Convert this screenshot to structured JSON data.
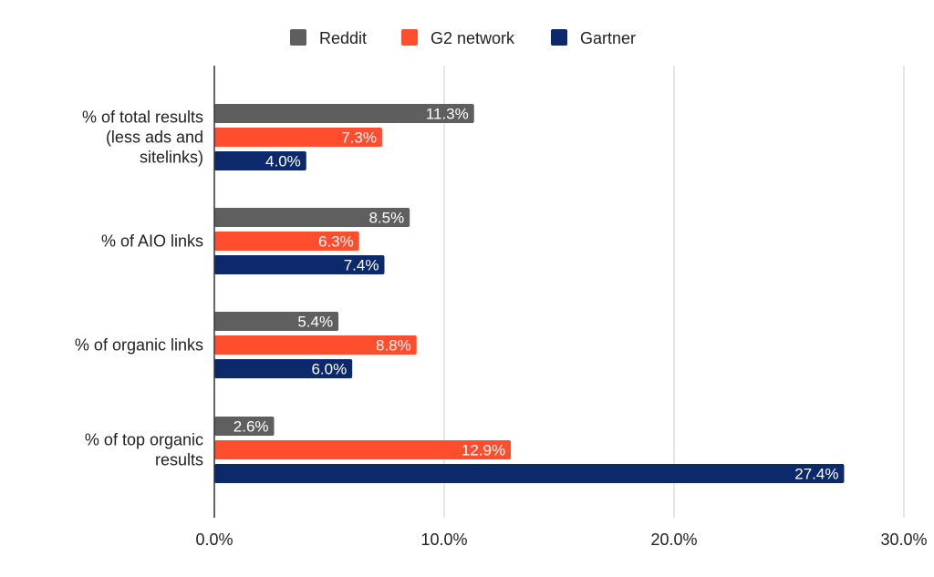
{
  "chart_data": {
    "type": "bar",
    "orientation": "horizontal",
    "categories": [
      "% of total results (less ads and sitelinks)",
      "% of AIO links",
      "% of organic links",
      "% of top organic results"
    ],
    "category_lines": [
      [
        "% of total results",
        "(less ads and",
        "sitelinks)"
      ],
      [
        "% of AIO links"
      ],
      [
        "% of organic links"
      ],
      [
        "% of top organic",
        "results"
      ]
    ],
    "series": [
      {
        "name": "Reddit",
        "color": "#5f5f5f",
        "values": [
          11.3,
          8.5,
          5.4,
          2.6
        ],
        "labels": [
          "11.3%",
          "8.5%",
          "5.4%",
          "2.6%"
        ]
      },
      {
        "name": "G2 network",
        "color": "#ff4e2e",
        "values": [
          7.3,
          6.3,
          8.8,
          12.9
        ],
        "labels": [
          "7.3%",
          "6.3%",
          "8.8%",
          "12.9%"
        ]
      },
      {
        "name": "Gartner",
        "color": "#0c2a6b",
        "values": [
          4.0,
          7.4,
          6.0,
          27.4
        ],
        "labels": [
          "4.0%",
          "7.4%",
          "6.0%",
          "27.4%"
        ]
      }
    ],
    "xlim": [
      0,
      30
    ],
    "xticks": [
      0,
      10,
      20,
      30
    ],
    "xtick_labels": [
      "0.0%",
      "10.0%",
      "20.0%",
      "30.0%"
    ],
    "title": "",
    "xlabel": "",
    "ylabel": "",
    "grid": "vertical",
    "legend_position": "top-center"
  }
}
